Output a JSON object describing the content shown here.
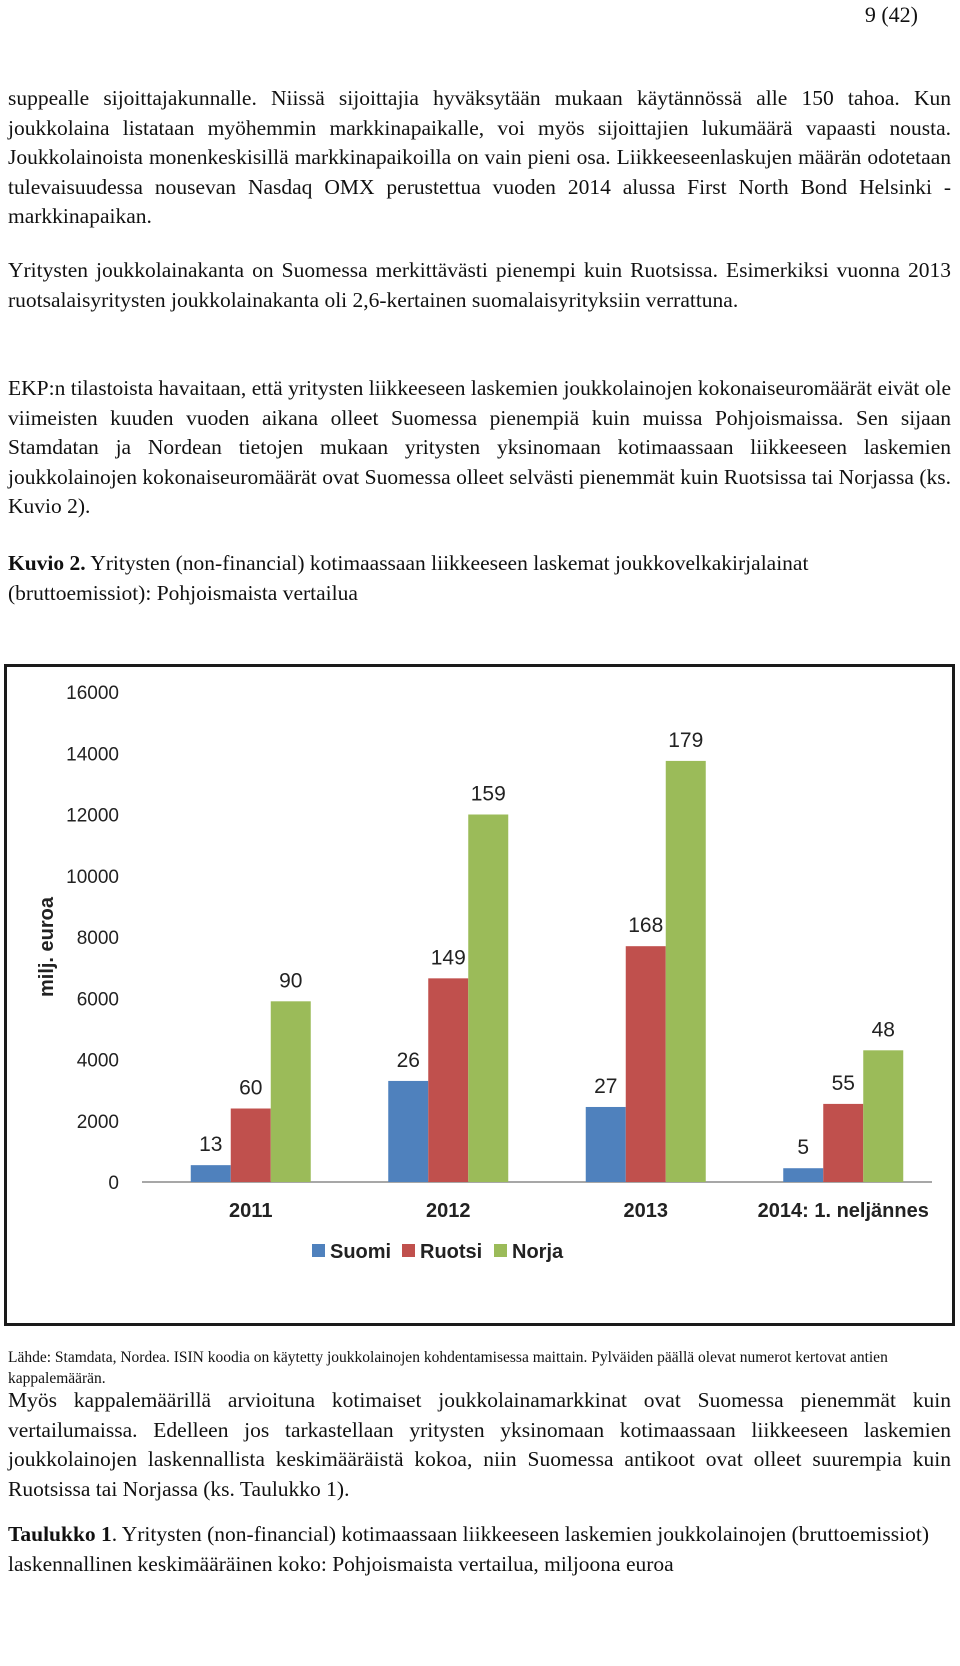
{
  "page_number": "9 (42)",
  "paragraphs": [
    "suppealle sijoittajakunnalle. Niissä sijoittajia hyväksytään mukaan käytännössä alle 150 tahoa. Kun joukkolaina listataan myöhemmin markkinapaikalle, voi myös sijoittajien lukumäärä vapaasti nousta. Joukkolainoista monenkeskisillä markkinapaikoilla on vain pieni osa. Liikkeeseenlaskujen määrän odotetaan tulevaisuudessa nousevan Nasdaq OMX perustettua vuoden 2014 alussa First North Bond Helsinki -markkinapaikan.",
    "Yritysten joukkolainakanta on Suomessa merkittävästi pienempi kuin Ruotsissa. Esimerkiksi vuonna 2013 ruotsalaisyritysten joukkolainakanta oli 2,6-kertainen suomalaisyrityksiin verrattuna.",
    "EKP:n tilastoista havaitaan, että yritysten liikkeeseen laskemien joukkolainojen kokonaiseuromäärät eivät ole viimeisten kuuden vuoden aikana olleet Suomessa pienempiä kuin muissa Pohjoismaissa. Sen sijaan Stamdatan ja Nordean tietojen mukaan yritysten yksinomaan kotimaassaan liikkeeseen laskemien joukkolainojen kokonaiseuromäärät ovat Suomessa olleet selvästi pienemmät kuin Ruotsissa tai Norjassa (ks. Kuvio 2).",
    "Myös kappalemäärillä arvioituna kotimaiset joukkolainamarkkinat ovat Suomessa pienemmät kuin vertailumaissa. Edelleen jos tarkastellaan yritysten yksinomaan kotimaassaan liikkeeseen laskemien joukkolainojen laskennallista keskimääräistä kokoa, niin Suomessa antikoot ovat olleet suurempia kuin Ruotsissa tai Norjassa (ks. Taulukko 1)."
  ],
  "figure": {
    "label": "Kuvio 2.",
    "caption": " Yritysten (non-financial) kotimaassaan liikkeeseen laskemat joukkovelkakirjalainat (bruttoemissiot): Pohjoismaista vertailua",
    "source": "Lähde: Stamdata, Nordea. ISIN koodia on käytetty joukkolainojen kohdentamisessa maittain. Pylväiden päällä olevat numerot kertovat antien kappalemäärän."
  },
  "table_caption": {
    "label": "Taulukko 1",
    "caption": ". Yritysten (non-financial) kotimaassaan liikkeeseen laskemien joukkolainojen (bruttoemissiot) laskennallinen keskimääräinen koko: Pohjoismaista vertailua, miljoona euroa"
  },
  "chart_data": {
    "type": "bar",
    "categories": [
      "2011",
      "2012",
      "2013",
      "2014: 1. neljännes"
    ],
    "ylabel": "milj. euroa",
    "ylim": [
      0,
      16000
    ],
    "yticks": [
      0,
      2000,
      4000,
      6000,
      8000,
      10000,
      12000,
      14000,
      16000
    ],
    "grid": false,
    "legend_position": "bottom",
    "series": [
      {
        "name": "Suomi",
        "color": "#4f81bd",
        "values": [
          550,
          3300,
          2450,
          450
        ],
        "labels": [
          "13",
          "26",
          "27",
          "5"
        ]
      },
      {
        "name": "Ruotsi",
        "color": "#c0504d",
        "values": [
          2400,
          6650,
          7700,
          2550
        ],
        "labels": [
          "60",
          "149",
          "168",
          "55"
        ]
      },
      {
        "name": "Norja",
        "color": "#9bbb59",
        "values": [
          5900,
          12000,
          13750,
          4300
        ],
        "labels": [
          "90",
          "159",
          "179",
          "48"
        ]
      }
    ]
  }
}
